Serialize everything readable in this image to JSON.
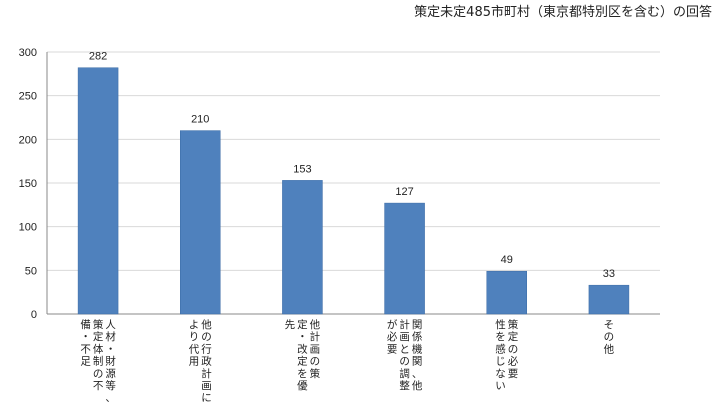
{
  "colors": {
    "bar": "#4f81bd",
    "bar_border": "#3a6aa5",
    "grid": "#d9d9d9",
    "axis": "#888888"
  },
  "chart_data": {
    "type": "bar",
    "title": "策定未定485市町村（東京都特別区を含む）の回答",
    "xlabel": "",
    "ylabel": "",
    "ylim": [
      0,
      300
    ],
    "yticks": [
      0,
      50,
      100,
      150,
      200,
      250,
      300
    ],
    "grid": true,
    "categories": [
      [
        "人材・財源等、",
        "策定体制の不",
        "備・不足"
      ],
      [
        "他の行政計画に",
        "より代用"
      ],
      [
        "他計画の策",
        "定・改定を優",
        "先"
      ],
      [
        "関係機関、他",
        "計画との調整",
        "が必要"
      ],
      [
        "策定の必要",
        "性を感じない"
      ],
      [
        "その他"
      ]
    ],
    "values": [
      282,
      210,
      153,
      127,
      49,
      33
    ]
  }
}
